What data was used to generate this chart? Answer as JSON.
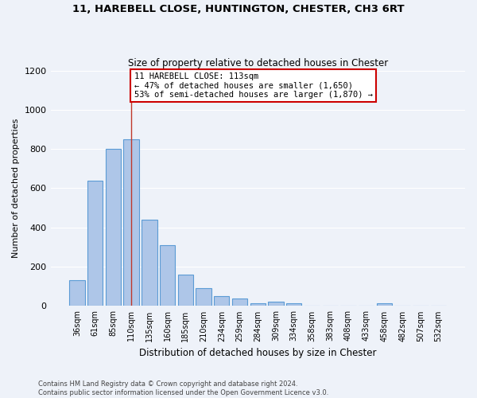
{
  "title1": "11, HAREBELL CLOSE, HUNTINGTON, CHESTER, CH3 6RT",
  "title2": "Size of property relative to detached houses in Chester",
  "xlabel": "Distribution of detached houses by size in Chester",
  "ylabel": "Number of detached properties",
  "categories": [
    "36sqm",
    "61sqm",
    "85sqm",
    "110sqm",
    "135sqm",
    "160sqm",
    "185sqm",
    "210sqm",
    "234sqm",
    "259sqm",
    "284sqm",
    "309sqm",
    "334sqm",
    "358sqm",
    "383sqm",
    "408sqm",
    "433sqm",
    "458sqm",
    "482sqm",
    "507sqm",
    "532sqm"
  ],
  "values": [
    130,
    640,
    800,
    850,
    440,
    310,
    160,
    90,
    50,
    40,
    15,
    20,
    12,
    0,
    0,
    0,
    0,
    12,
    0,
    0,
    0
  ],
  "bar_color": "#aec6e8",
  "bar_edge_color": "#5b9bd5",
  "highlight_index": 3,
  "highlight_line_color": "#c0392b",
  "ylim": [
    0,
    1200
  ],
  "yticks": [
    0,
    200,
    400,
    600,
    800,
    1000,
    1200
  ],
  "annotation_line1": "11 HAREBELL CLOSE: 113sqm",
  "annotation_line2": "← 47% of detached houses are smaller (1,650)",
  "annotation_line3": "53% of semi-detached houses are larger (1,870) →",
  "annotation_box_color": "#ffffff",
  "annotation_box_edge_color": "#cc0000",
  "footer_text": "Contains HM Land Registry data © Crown copyright and database right 2024.\nContains public sector information licensed under the Open Government Licence v3.0.",
  "background_color": "#eef2f9",
  "grid_color": "#ffffff",
  "fig_width": 6.0,
  "fig_height": 5.0
}
